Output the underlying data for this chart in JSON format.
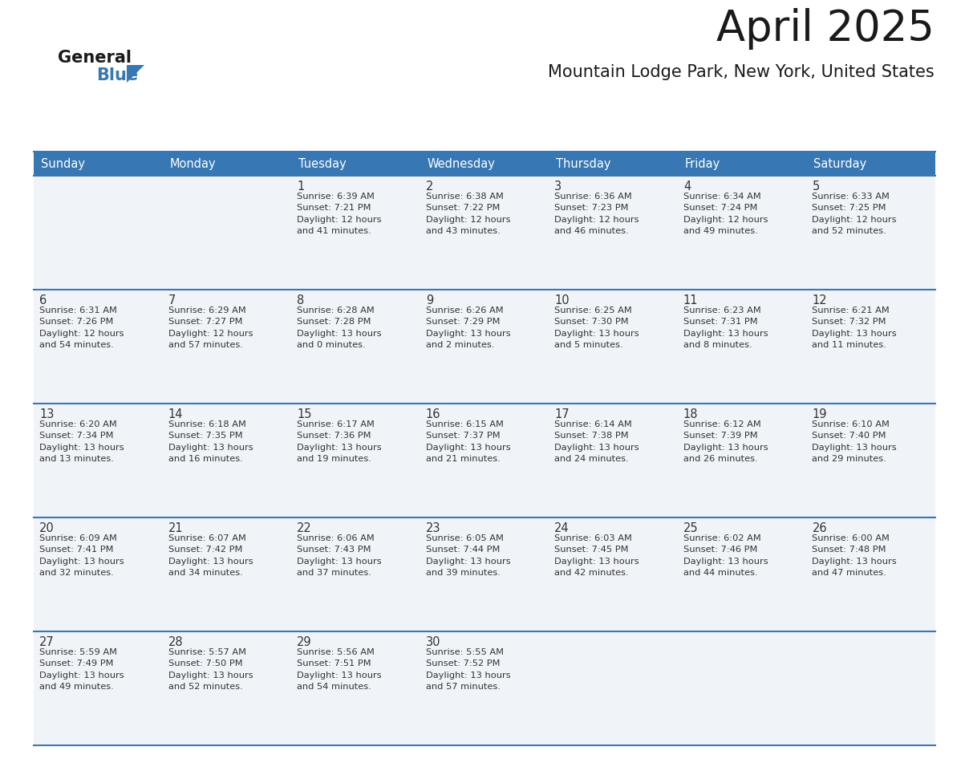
{
  "title": "April 2025",
  "subtitle": "Mountain Lodge Park, New York, United States",
  "header_color": "#3778b4",
  "header_text_color": "#ffffff",
  "background_color": "#ffffff",
  "cell_bg": "#f0f4f8",
  "days_of_week": [
    "Sunday",
    "Monday",
    "Tuesday",
    "Wednesday",
    "Thursday",
    "Friday",
    "Saturday"
  ],
  "title_color": "#1a1a1a",
  "subtitle_color": "#1a1a1a",
  "text_color": "#333333",
  "border_color": "#3778b4",
  "weeks": [
    [
      {
        "day": "",
        "info": ""
      },
      {
        "day": "",
        "info": ""
      },
      {
        "day": "1",
        "info": "Sunrise: 6:39 AM\nSunset: 7:21 PM\nDaylight: 12 hours\nand 41 minutes."
      },
      {
        "day": "2",
        "info": "Sunrise: 6:38 AM\nSunset: 7:22 PM\nDaylight: 12 hours\nand 43 minutes."
      },
      {
        "day": "3",
        "info": "Sunrise: 6:36 AM\nSunset: 7:23 PM\nDaylight: 12 hours\nand 46 minutes."
      },
      {
        "day": "4",
        "info": "Sunrise: 6:34 AM\nSunset: 7:24 PM\nDaylight: 12 hours\nand 49 minutes."
      },
      {
        "day": "5",
        "info": "Sunrise: 6:33 AM\nSunset: 7:25 PM\nDaylight: 12 hours\nand 52 minutes."
      }
    ],
    [
      {
        "day": "6",
        "info": "Sunrise: 6:31 AM\nSunset: 7:26 PM\nDaylight: 12 hours\nand 54 minutes."
      },
      {
        "day": "7",
        "info": "Sunrise: 6:29 AM\nSunset: 7:27 PM\nDaylight: 12 hours\nand 57 minutes."
      },
      {
        "day": "8",
        "info": "Sunrise: 6:28 AM\nSunset: 7:28 PM\nDaylight: 13 hours\nand 0 minutes."
      },
      {
        "day": "9",
        "info": "Sunrise: 6:26 AM\nSunset: 7:29 PM\nDaylight: 13 hours\nand 2 minutes."
      },
      {
        "day": "10",
        "info": "Sunrise: 6:25 AM\nSunset: 7:30 PM\nDaylight: 13 hours\nand 5 minutes."
      },
      {
        "day": "11",
        "info": "Sunrise: 6:23 AM\nSunset: 7:31 PM\nDaylight: 13 hours\nand 8 minutes."
      },
      {
        "day": "12",
        "info": "Sunrise: 6:21 AM\nSunset: 7:32 PM\nDaylight: 13 hours\nand 11 minutes."
      }
    ],
    [
      {
        "day": "13",
        "info": "Sunrise: 6:20 AM\nSunset: 7:34 PM\nDaylight: 13 hours\nand 13 minutes."
      },
      {
        "day": "14",
        "info": "Sunrise: 6:18 AM\nSunset: 7:35 PM\nDaylight: 13 hours\nand 16 minutes."
      },
      {
        "day": "15",
        "info": "Sunrise: 6:17 AM\nSunset: 7:36 PM\nDaylight: 13 hours\nand 19 minutes."
      },
      {
        "day": "16",
        "info": "Sunrise: 6:15 AM\nSunset: 7:37 PM\nDaylight: 13 hours\nand 21 minutes."
      },
      {
        "day": "17",
        "info": "Sunrise: 6:14 AM\nSunset: 7:38 PM\nDaylight: 13 hours\nand 24 minutes."
      },
      {
        "day": "18",
        "info": "Sunrise: 6:12 AM\nSunset: 7:39 PM\nDaylight: 13 hours\nand 26 minutes."
      },
      {
        "day": "19",
        "info": "Sunrise: 6:10 AM\nSunset: 7:40 PM\nDaylight: 13 hours\nand 29 minutes."
      }
    ],
    [
      {
        "day": "20",
        "info": "Sunrise: 6:09 AM\nSunset: 7:41 PM\nDaylight: 13 hours\nand 32 minutes."
      },
      {
        "day": "21",
        "info": "Sunrise: 6:07 AM\nSunset: 7:42 PM\nDaylight: 13 hours\nand 34 minutes."
      },
      {
        "day": "22",
        "info": "Sunrise: 6:06 AM\nSunset: 7:43 PM\nDaylight: 13 hours\nand 37 minutes."
      },
      {
        "day": "23",
        "info": "Sunrise: 6:05 AM\nSunset: 7:44 PM\nDaylight: 13 hours\nand 39 minutes."
      },
      {
        "day": "24",
        "info": "Sunrise: 6:03 AM\nSunset: 7:45 PM\nDaylight: 13 hours\nand 42 minutes."
      },
      {
        "day": "25",
        "info": "Sunrise: 6:02 AM\nSunset: 7:46 PM\nDaylight: 13 hours\nand 44 minutes."
      },
      {
        "day": "26",
        "info": "Sunrise: 6:00 AM\nSunset: 7:48 PM\nDaylight: 13 hours\nand 47 minutes."
      }
    ],
    [
      {
        "day": "27",
        "info": "Sunrise: 5:59 AM\nSunset: 7:49 PM\nDaylight: 13 hours\nand 49 minutes."
      },
      {
        "day": "28",
        "info": "Sunrise: 5:57 AM\nSunset: 7:50 PM\nDaylight: 13 hours\nand 52 minutes."
      },
      {
        "day": "29",
        "info": "Sunrise: 5:56 AM\nSunset: 7:51 PM\nDaylight: 13 hours\nand 54 minutes."
      },
      {
        "day": "30",
        "info": "Sunrise: 5:55 AM\nSunset: 7:52 PM\nDaylight: 13 hours\nand 57 minutes."
      },
      {
        "day": "",
        "info": ""
      },
      {
        "day": "",
        "info": ""
      },
      {
        "day": "",
        "info": ""
      }
    ]
  ],
  "logo_general_color": "#1a1a1a",
  "logo_blue_color": "#3778b4",
  "logo_triangle_color": "#3778b4"
}
